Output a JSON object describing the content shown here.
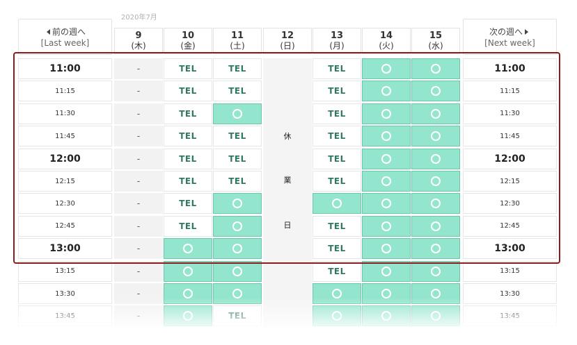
{
  "calendar": {
    "month_label": "2020年7月",
    "prev_week": {
      "line1": "前の週へ",
      "line2": "[Last week]"
    },
    "next_week": {
      "line1": "次の週へ",
      "line2": "[Next week]"
    },
    "days": [
      {
        "date": "9",
        "weekday": "(木)"
      },
      {
        "date": "10",
        "weekday": "(金)"
      },
      {
        "date": "11",
        "weekday": "(土)"
      },
      {
        "date": "12",
        "weekday": "(日)"
      },
      {
        "date": "13",
        "weekday": "(月)"
      },
      {
        "date": "14",
        "weekday": "(火)"
      },
      {
        "date": "15",
        "weekday": "(水)"
      }
    ],
    "holiday_chars": [
      "休",
      "業",
      "日"
    ],
    "rows": [
      {
        "time": "11:00",
        "hour": true,
        "slots": [
          "-",
          "TEL",
          "TEL",
          "closed",
          "TEL",
          "available",
          "available"
        ]
      },
      {
        "time": "11:15",
        "hour": false,
        "slots": [
          "-",
          "TEL",
          "TEL",
          "closed",
          "TEL",
          "available",
          "available"
        ]
      },
      {
        "time": "11:30",
        "hour": false,
        "slots": [
          "-",
          "TEL",
          "available",
          "closed",
          "TEL",
          "available",
          "available"
        ]
      },
      {
        "time": "11:45",
        "hour": false,
        "slots": [
          "-",
          "TEL",
          "TEL",
          "closed",
          "TEL",
          "available",
          "available"
        ]
      },
      {
        "time": "12:00",
        "hour": true,
        "slots": [
          "-",
          "TEL",
          "TEL",
          "closed",
          "TEL",
          "available",
          "available"
        ]
      },
      {
        "time": "12:15",
        "hour": false,
        "slots": [
          "-",
          "TEL",
          "TEL",
          "closed",
          "TEL",
          "available",
          "available"
        ]
      },
      {
        "time": "12:30",
        "hour": false,
        "slots": [
          "-",
          "TEL",
          "available",
          "closed",
          "available",
          "available",
          "available"
        ]
      },
      {
        "time": "12:45",
        "hour": false,
        "slots": [
          "-",
          "TEL",
          "available",
          "closed",
          "TEL",
          "available",
          "available"
        ]
      },
      {
        "time": "13:00",
        "hour": true,
        "slots": [
          "-",
          "available",
          "available",
          "closed",
          "TEL",
          "available",
          "available"
        ]
      },
      {
        "time": "13:15",
        "hour": false,
        "slots": [
          "-",
          "available",
          "available",
          "closed",
          "TEL",
          "available",
          "available"
        ]
      },
      {
        "time": "13:30",
        "hour": false,
        "slots": [
          "-",
          "available",
          "available",
          "closed",
          "available",
          "available",
          "available"
        ]
      },
      {
        "time": "13:45",
        "hour": false,
        "slots": [
          "-",
          "available",
          "TEL",
          "closed",
          "available",
          "available",
          "available"
        ]
      }
    ],
    "colors": {
      "available": "#93e5cd",
      "highlight": "#8b1c1c",
      "tel_text": "#2f7a5f"
    }
  }
}
